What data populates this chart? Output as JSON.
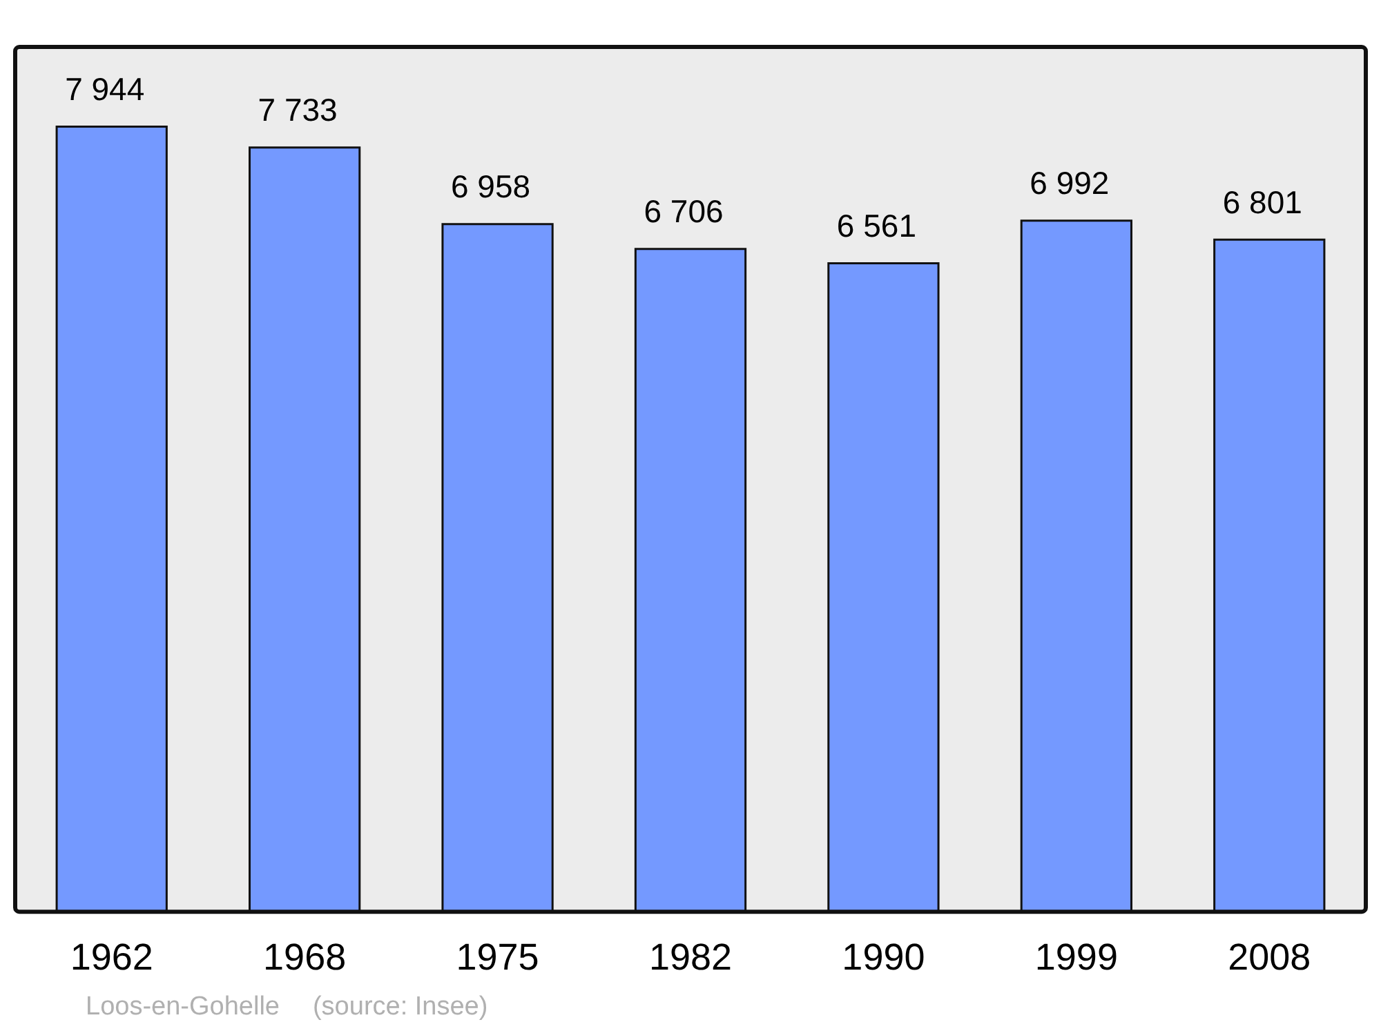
{
  "chart_data": {
    "type": "bar",
    "categories": [
      "1962",
      "1968",
      "1975",
      "1982",
      "1990",
      "1999",
      "2008"
    ],
    "values": [
      7944,
      7733,
      6958,
      6706,
      6561,
      6992,
      6801
    ],
    "value_labels": [
      "7 944",
      "7 733",
      "6 958",
      "6 706",
      "6 561",
      "6 992",
      "6 801"
    ],
    "color": "#7499ff",
    "ylim": [
      0,
      8750
    ],
    "legend": false,
    "annotations": [
      "Loos-en-Gohelle",
      "(source: Insee)"
    ]
  }
}
